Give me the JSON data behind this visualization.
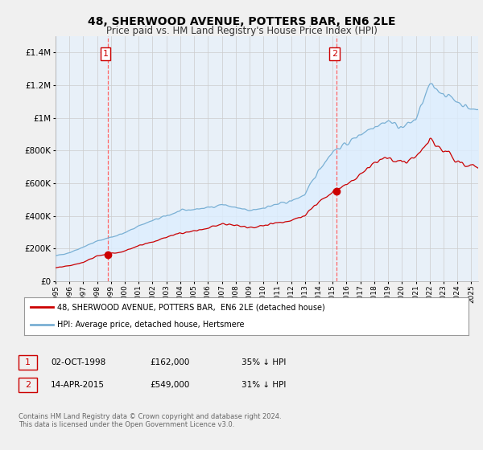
{
  "title": "48, SHERWOOD AVENUE, POTTERS BAR, EN6 2LE",
  "subtitle": "Price paid vs. HM Land Registry's House Price Index (HPI)",
  "ylim": [
    0,
    1500000
  ],
  "yticks": [
    0,
    200000,
    400000,
    600000,
    800000,
    1000000,
    1200000,
    1400000
  ],
  "xmin": 1995.0,
  "xmax": 2025.5,
  "sale1_x": 1998.75,
  "sale1_y": 162000,
  "sale2_x": 2015.28,
  "sale2_y": 549000,
  "sale1_date": "02-OCT-1998",
  "sale1_price": "£162,000",
  "sale1_hpi": "35% ↓ HPI",
  "sale2_date": "14-APR-2015",
  "sale2_price": "£549,000",
  "sale2_hpi": "31% ↓ HPI",
  "red_color": "#cc0000",
  "blue_color": "#7ab0d4",
  "fill_color": "#ddeeff",
  "vline_color": "#ff6666",
  "legend_label_red": "48, SHERWOOD AVENUE, POTTERS BAR,  EN6 2LE (detached house)",
  "legend_label_blue": "HPI: Average price, detached house, Hertsmere",
  "footer": "Contains HM Land Registry data © Crown copyright and database right 2024.\nThis data is licensed under the Open Government Licence v3.0.",
  "background_color": "#f0f0f0",
  "plot_bg": "#e8f0f8"
}
